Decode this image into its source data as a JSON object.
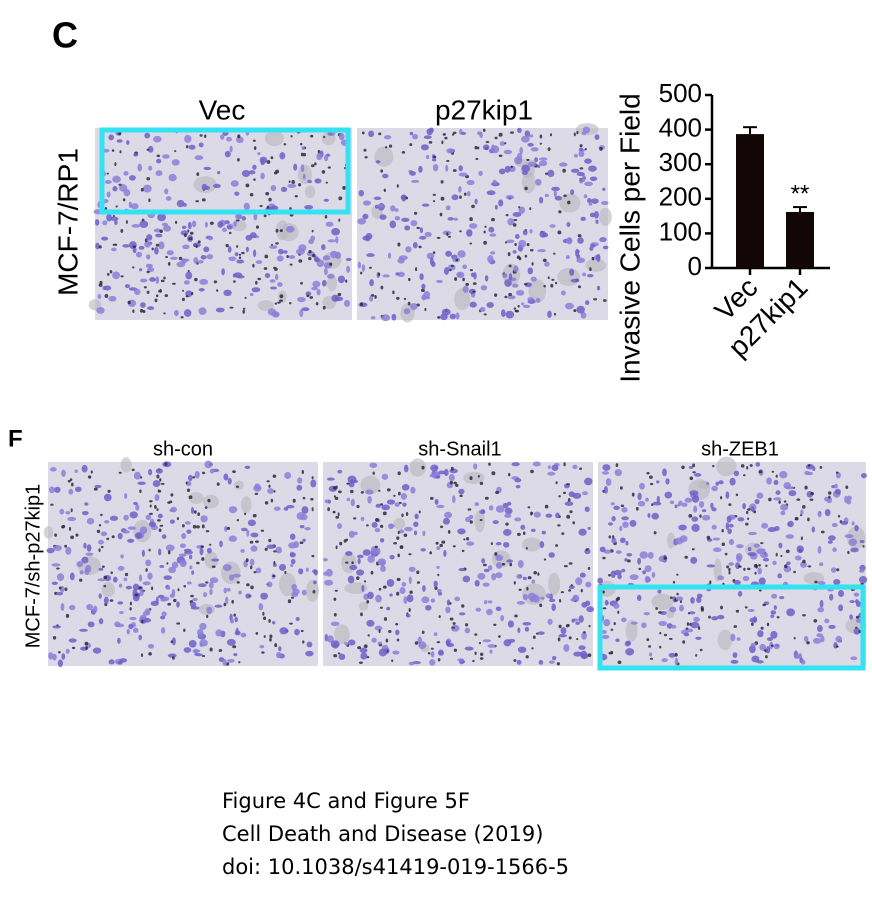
{
  "panel_c": {
    "label": "C",
    "column_labels": [
      "Vec",
      "p27kip1"
    ],
    "row_label": "MCF-7/RP1",
    "chart_data": {
      "type": "bar",
      "ylabel": "Invasive Cells per Field",
      "categories": [
        "Vec",
        "p27kip1"
      ],
      "values": [
        387,
        162
      ],
      "errors": [
        20,
        14
      ],
      "color": "#120606",
      "ylim": [
        0,
        500
      ],
      "yticks": [
        0,
        100,
        200,
        300,
        400,
        500
      ],
      "annotation": "**"
    }
  },
  "panel_f": {
    "label": "F",
    "column_labels": [
      "sh-con",
      "sh-Snail1",
      "sh-ZEB1"
    ],
    "row_label": "MCF-7/sh-p27kip1"
  },
  "caption": [
    "Figure 4C and Figure 5F",
    "Cell Death and Disease (2019)",
    "doi: 10.1038/s41419-019-1566-5"
  ]
}
